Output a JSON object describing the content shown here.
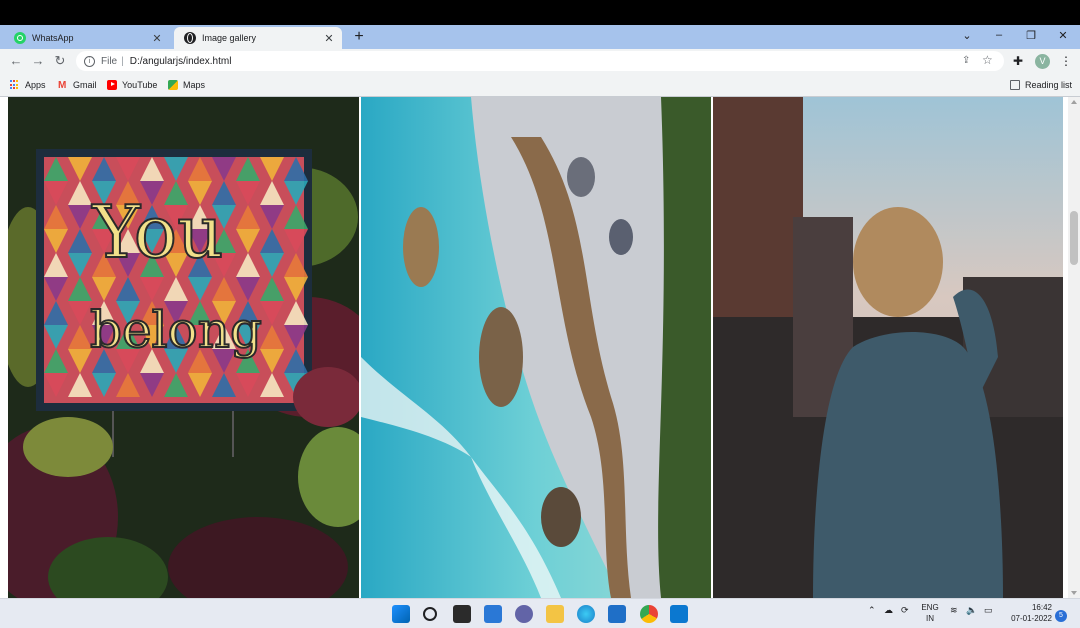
{
  "browser": {
    "tabs": [
      {
        "title": "WhatsApp",
        "active": false,
        "icon": "whatsapp-icon"
      },
      {
        "title": "Image gallery",
        "active": true,
        "icon": "globe-icon"
      }
    ],
    "new_tab": "+",
    "window_controls": {
      "chevron": "⌄",
      "minimize": "–",
      "restore": "❐",
      "close": "✕"
    },
    "address": {
      "scheme": "File",
      "separator": "|",
      "url": "D:/angularjs/index.html"
    },
    "profile_initial": "V",
    "bookmarks": [
      {
        "label": "Apps",
        "icon": "apps-grid-icon"
      },
      {
        "label": "Gmail",
        "icon": "gmail-icon"
      },
      {
        "label": "YouTube",
        "icon": "youtube-icon"
      },
      {
        "label": "Maps",
        "icon": "maps-icon"
      }
    ],
    "reading_list": "Reading list"
  },
  "page": {
    "sign_text_1": "You",
    "sign_text_2": "belong",
    "photos": [
      {
        "name": "you-belong-sign-photo"
      },
      {
        "name": "aerial-coastline-photo"
      },
      {
        "name": "woman-denim-jacket-photo"
      }
    ]
  },
  "taskbar": {
    "lang_top": "ENG",
    "lang_bottom": "IN",
    "time": "16:42",
    "date": "07-01-2022",
    "notifications": "5"
  }
}
